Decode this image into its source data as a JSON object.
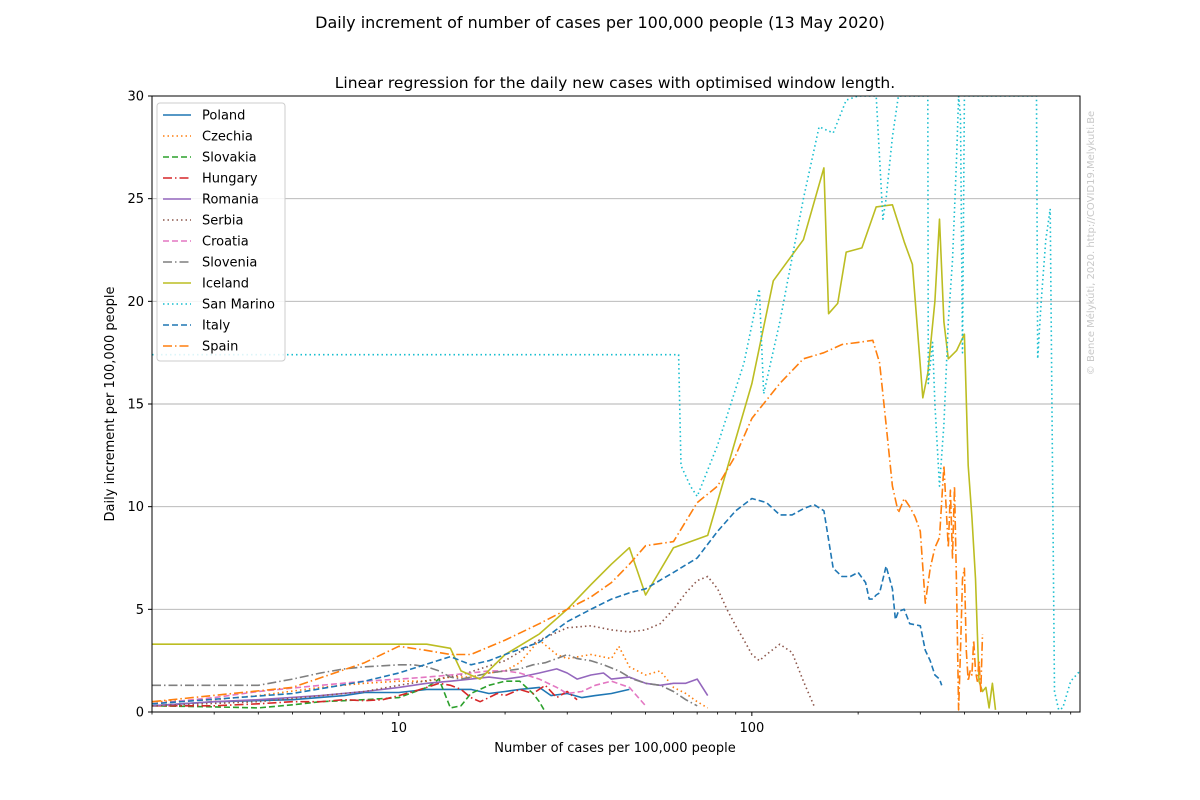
{
  "figure": {
    "suptitle": "Daily increment of number of cases per 100,000 people (13 May 2020)",
    "watermark": "© Bence Mélykúti, 2020. http://COVID19.Melykuti.Be"
  },
  "chart_data": {
    "type": "line",
    "title": "Linear regression for the daily new cases with optimised window length.",
    "xlabel": "Number of cases per 100,000 people",
    "ylabel": "Daily increment per 100,000 people",
    "xscale": "log",
    "xlim": [
      2,
      850
    ],
    "ylim": [
      0,
      30
    ],
    "xticks": [
      10,
      100
    ],
    "xtick_labels": [
      "10",
      "100"
    ],
    "yticks": [
      0,
      5,
      10,
      15,
      20,
      25,
      30
    ],
    "ytick_labels": [
      "0",
      "5",
      "10",
      "15",
      "20",
      "25",
      "30"
    ],
    "grid": "y-major",
    "legend_position": "upper-left",
    "series": [
      {
        "name": "Poland",
        "color": "#1f77b4",
        "dash": "solid",
        "x": [
          2,
          3,
          5,
          7,
          8,
          10,
          12,
          14,
          16,
          18,
          20,
          22,
          25,
          27,
          30,
          33,
          36,
          40,
          45
        ],
        "y": [
          0.3,
          0.5,
          0.6,
          0.8,
          0.95,
          0.95,
          1.1,
          1.1,
          1.1,
          0.9,
          1.0,
          1.1,
          1.2,
          0.8,
          0.9,
          0.7,
          0.8,
          0.9,
          1.1
        ]
      },
      {
        "name": "Czechia",
        "color": "#ff7f0e",
        "dash": "dotted",
        "x": [
          2,
          3,
          4,
          6,
          8,
          10,
          12,
          14,
          16,
          18,
          20,
          22,
          25,
          28,
          30,
          35,
          40,
          42,
          45,
          50,
          55,
          60,
          65,
          70,
          75
        ],
        "y": [
          0.5,
          0.6,
          0.8,
          1.2,
          1.4,
          1.5,
          1.5,
          1.7,
          1.7,
          1.9,
          2.0,
          2.4,
          3.5,
          2.8,
          2.6,
          2.8,
          2.6,
          3.2,
          2.2,
          1.8,
          2.0,
          1.2,
          0.9,
          0.5,
          0.2
        ]
      },
      {
        "name": "Slovakia",
        "color": "#2ca02c",
        "dash": "dashed",
        "x": [
          2,
          3,
          4,
          5,
          6,
          8,
          10,
          12,
          13,
          14,
          15,
          16,
          18,
          20,
          22,
          24,
          25,
          26
        ],
        "y": [
          0.3,
          0.25,
          0.2,
          0.35,
          0.5,
          0.6,
          0.7,
          1.2,
          1.6,
          0.2,
          0.3,
          0.9,
          1.3,
          1.5,
          1.5,
          0.9,
          0.5,
          0.0
        ]
      },
      {
        "name": "Hungary",
        "color": "#d62728",
        "dash": "dashdot",
        "x": [
          2,
          3,
          4,
          5,
          6,
          7,
          8,
          9,
          10,
          11,
          12,
          13,
          14,
          15,
          16,
          17,
          18,
          19,
          20,
          22,
          24,
          26,
          28,
          30,
          32
        ],
        "y": [
          0.3,
          0.3,
          0.4,
          0.5,
          0.5,
          0.6,
          0.55,
          0.6,
          0.8,
          1.0,
          1.2,
          1.4,
          1.3,
          1.1,
          0.7,
          0.5,
          0.7,
          0.9,
          0.8,
          1.1,
          0.9,
          1.3,
          0.7,
          1.0,
          0.6
        ]
      },
      {
        "name": "Romania",
        "color": "#9467bd",
        "dash": "solid",
        "x": [
          2,
          3,
          4,
          6,
          8,
          10,
          12,
          14,
          16,
          18,
          20,
          22,
          25,
          28,
          30,
          32,
          35,
          38,
          40,
          45,
          50,
          55,
          60,
          65,
          70,
          75
        ],
        "y": [
          0.3,
          0.5,
          0.6,
          0.8,
          1.0,
          1.2,
          1.4,
          1.5,
          1.6,
          1.7,
          1.6,
          1.7,
          1.9,
          2.1,
          1.9,
          1.6,
          1.8,
          1.9,
          1.6,
          1.7,
          1.4,
          1.3,
          1.4,
          1.4,
          1.6,
          0.8
        ]
      },
      {
        "name": "Serbia",
        "color": "#8c564b",
        "dash": "dotted",
        "x": [
          2,
          4,
          8,
          10,
          15,
          20,
          25,
          30,
          35,
          40,
          45,
          50,
          55,
          60,
          65,
          70,
          75,
          80,
          85,
          90,
          95,
          100,
          105,
          110,
          120,
          130,
          140,
          150
        ],
        "y": [
          0.3,
          0.5,
          1.0,
          1.3,
          1.8,
          2.5,
          3.5,
          4.1,
          4.2,
          4.0,
          3.9,
          4.0,
          4.3,
          5.0,
          5.8,
          6.4,
          6.6,
          6.0,
          5.0,
          4.2,
          3.5,
          2.8,
          2.5,
          2.8,
          3.3,
          2.9,
          1.5,
          0.3
        ]
      },
      {
        "name": "Croatia",
        "color": "#e377c2",
        "dash": "dashed",
        "x": [
          2,
          3,
          4,
          6,
          8,
          10,
          12,
          14,
          16,
          18,
          20,
          22,
          25,
          28,
          30,
          33,
          36,
          40,
          45,
          50
        ],
        "y": [
          0.4,
          0.7,
          1.0,
          1.3,
          1.5,
          1.6,
          1.7,
          1.8,
          1.9,
          2.0,
          2.0,
          1.9,
          1.6,
          1.2,
          0.9,
          1.0,
          1.3,
          1.5,
          1.2,
          0.3
        ]
      },
      {
        "name": "Slovenia",
        "color": "#7f7f7f",
        "dash": "dashdot",
        "x": [
          2,
          4,
          5,
          6,
          7,
          8,
          9,
          10,
          11,
          12,
          13,
          14,
          15,
          16,
          18,
          20,
          22,
          24,
          26,
          28,
          30,
          32,
          35,
          38,
          42,
          46,
          50,
          55,
          60,
          65,
          70
        ],
        "y": [
          1.3,
          1.3,
          1.6,
          1.9,
          2.1,
          2.2,
          2.25,
          2.3,
          2.3,
          2.2,
          2.0,
          1.7,
          1.6,
          1.7,
          1.9,
          2.0,
          2.1,
          2.3,
          2.4,
          2.6,
          2.8,
          2.6,
          2.5,
          2.3,
          2.0,
          1.6,
          1.4,
          1.3,
          1.0,
          0.6,
          0.3
        ]
      },
      {
        "name": "Iceland",
        "color": "#bcbd22",
        "dash": "solid",
        "x": [
          2,
          6,
          10,
          12,
          14,
          15,
          17,
          20,
          25,
          30,
          35,
          40,
          45,
          50,
          60,
          75,
          100,
          115,
          140,
          160,
          165,
          175,
          185,
          205,
          225,
          250,
          270,
          285,
          305,
          315,
          330,
          340,
          350,
          360,
          380,
          400,
          410,
          420,
          430,
          440,
          450,
          460,
          470,
          480,
          490
        ],
        "y": [
          3.3,
          3.3,
          3.3,
          3.3,
          3.1,
          2.0,
          1.6,
          2.8,
          3.8,
          5.0,
          6.2,
          7.2,
          8.0,
          5.7,
          8.0,
          8.6,
          16.0,
          21.0,
          23.0,
          26.5,
          19.4,
          19.9,
          22.4,
          22.6,
          24.6,
          24.7,
          22.9,
          21.8,
          15.3,
          16.5,
          20.0,
          24.0,
          19.0,
          17.2,
          17.6,
          18.4,
          12.0,
          9.5,
          6.5,
          1.5,
          1.0,
          1.2,
          0.2,
          1.4,
          0.1
        ]
      },
      {
        "name": "San Marino",
        "color": "#17becf",
        "dash": "dotted",
        "x": [
          2,
          50,
          62,
          63,
          67,
          70,
          80,
          95,
          105,
          108,
          120,
          140,
          155,
          170,
          185,
          200,
          215,
          225,
          235,
          240,
          250,
          260,
          315,
          316,
          325,
          330,
          340,
          350,
          360,
          370,
          380,
          385,
          390,
          395,
          400,
          410,
          420,
          640,
          645,
          660,
          680,
          700,
          720,
          740,
          760,
          800,
          850
        ],
        "y": [
          17.4,
          17.4,
          17.4,
          12.0,
          11.0,
          10.5,
          13.0,
          17.0,
          20.6,
          15.5,
          19.0,
          25.0,
          28.5,
          28.2,
          29.8,
          30.0,
          30.0,
          30.0,
          24.0,
          25.0,
          28.0,
          30.0,
          30.0,
          16.0,
          18.0,
          15.0,
          11.0,
          14.0,
          19.0,
          22.0,
          27.0,
          30.0,
          29.0,
          17.5,
          30.0,
          30.0,
          30.0,
          30.0,
          17.2,
          20.0,
          23.0,
          24.5,
          1.0,
          0.1,
          0.2,
          1.5,
          2.0
        ]
      },
      {
        "name": "Italy",
        "color": "#1f77b4",
        "dash": "dashed",
        "x": [
          2,
          5,
          8,
          10,
          14,
          16,
          18,
          20,
          25,
          30,
          35,
          40,
          45,
          50,
          60,
          70,
          80,
          90,
          100,
          110,
          120,
          130,
          140,
          150,
          160,
          170,
          180,
          190,
          200,
          210,
          215,
          220,
          225,
          230,
          240,
          250,
          255,
          260,
          270,
          280,
          300,
          310,
          320,
          330,
          340,
          345
        ],
        "y": [
          0.4,
          0.9,
          1.5,
          1.9,
          2.7,
          2.3,
          2.5,
          2.8,
          3.4,
          4.4,
          5.0,
          5.5,
          5.8,
          6.0,
          6.8,
          7.5,
          8.8,
          9.8,
          10.4,
          10.2,
          9.6,
          9.6,
          9.9,
          10.1,
          9.8,
          7.0,
          6.6,
          6.6,
          6.8,
          6.3,
          5.5,
          5.5,
          5.7,
          5.8,
          7.1,
          6.0,
          4.5,
          4.9,
          5.0,
          4.3,
          4.2,
          3.0,
          2.5,
          1.8,
          1.6,
          1.3
        ]
      },
      {
        "name": "Spain",
        "color": "#ff7f0e",
        "dash": "dashdot",
        "x": [
          2,
          5,
          8,
          10,
          12,
          14,
          16,
          20,
          25,
          30,
          35,
          40,
          45,
          50,
          60,
          70,
          80,
          90,
          100,
          120,
          140,
          160,
          180,
          200,
          220,
          230,
          240,
          250,
          260,
          270,
          280,
          290,
          300,
          310,
          320,
          330,
          340,
          350,
          360,
          365,
          370,
          375,
          380,
          385,
          390,
          395,
          400,
          405,
          410,
          415,
          420,
          425,
          430,
          435,
          440,
          445,
          450
        ],
        "y": [
          0.5,
          1.2,
          2.4,
          3.2,
          3.0,
          2.8,
          2.8,
          3.5,
          4.3,
          5.0,
          5.6,
          6.3,
          7.2,
          8.1,
          8.3,
          10.2,
          11.0,
          12.5,
          14.3,
          16.0,
          17.2,
          17.5,
          17.9,
          18.0,
          18.1,
          17.0,
          14.0,
          11.0,
          9.7,
          10.4,
          10.0,
          9.5,
          8.8,
          5.3,
          7.0,
          8.0,
          8.5,
          12.0,
          8.0,
          10.8,
          7.5,
          11.0,
          6.0,
          0.1,
          3.0,
          6.5,
          7.0,
          3.0,
          1.5,
          2.0,
          1.8,
          3.5,
          2.0,
          1.5,
          2.5,
          1.0,
          3.8
        ]
      }
    ]
  }
}
